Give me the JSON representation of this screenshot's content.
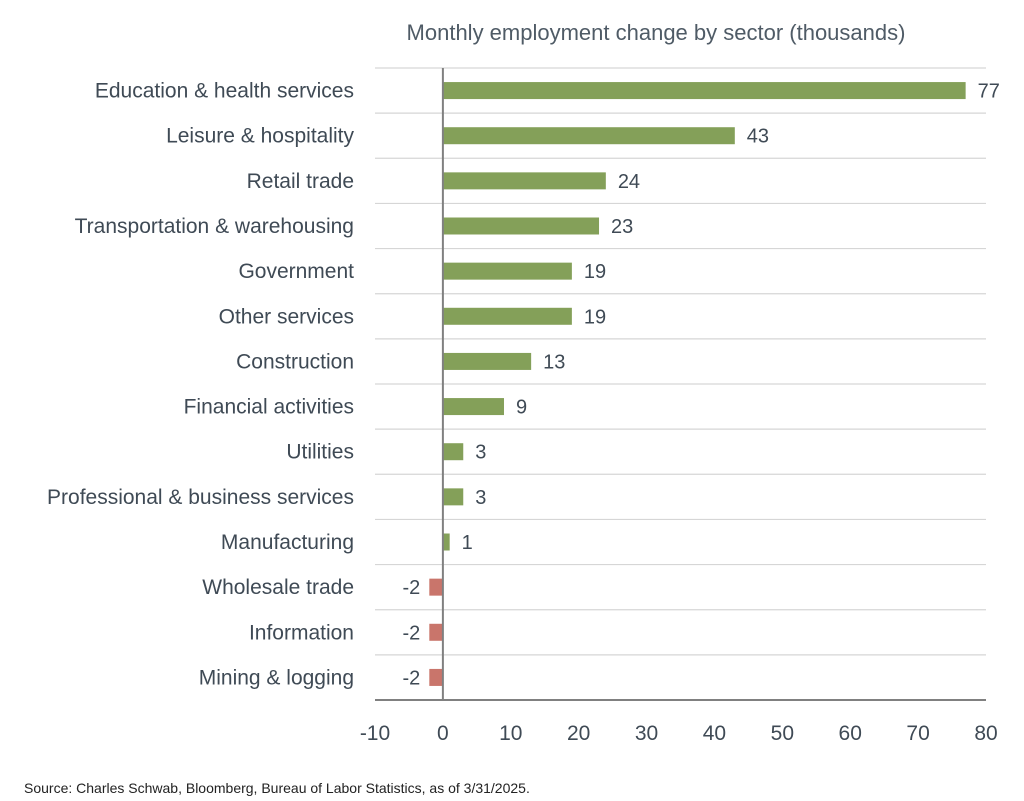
{
  "chart_data": {
    "type": "bar",
    "orientation": "horizontal",
    "title": "Monthly employment change by sector (thousands)",
    "categories": [
      "Education & health services",
      "Leisure & hospitality",
      "Retail trade",
      "Transportation & warehousing",
      "Government",
      "Other services",
      "Construction",
      "Financial activities",
      "Utilities",
      "Professional & business services",
      "Manufacturing",
      "Wholesale trade",
      "Information",
      "Mining & logging"
    ],
    "values": [
      77,
      43,
      24,
      23,
      19,
      19,
      13,
      9,
      3,
      3,
      1,
      -2,
      -2,
      -2
    ],
    "value_labels": [
      "77",
      "43",
      "24",
      "23",
      "19",
      "19",
      "13",
      "9",
      "3",
      "3",
      "1",
      "-2",
      "-2",
      "-2"
    ],
    "xlim": [
      -10,
      80
    ],
    "xticks": [
      -10,
      0,
      10,
      20,
      30,
      40,
      50,
      60,
      70,
      80
    ],
    "xtick_labels": [
      "-10",
      "0",
      "10",
      "20",
      "30",
      "40",
      "50",
      "60",
      "70",
      "80"
    ],
    "colors": {
      "positive": "#84a059",
      "negative": "#c9756b",
      "grid": "#d6d6d6",
      "axis": "#808080"
    },
    "grid": true,
    "legend": "none",
    "source": "Source: Charles Schwab, Bloomberg, Bureau of Labor Statistics, as of 3/31/2025."
  }
}
